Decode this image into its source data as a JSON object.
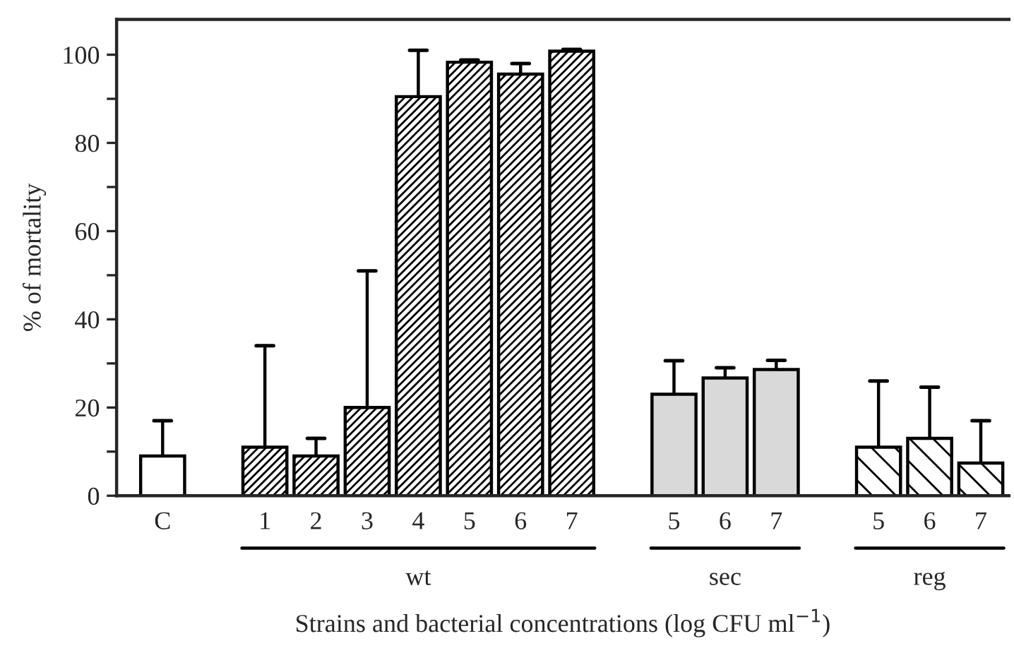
{
  "chart_data": {
    "type": "bar",
    "ylabel": "% of mortality",
    "xlabel": "Strains and bacterial concentrations (log CFU ml$^{−1}$)",
    "categories": [
      "C",
      null,
      "1",
      "2",
      "3",
      "4",
      "5",
      "6",
      "7",
      null,
      "5",
      "6",
      "7",
      null,
      "5",
      "6",
      "7"
    ],
    "series": [
      {
        "color": "#ffffff",
        "values": [
          9,
          null,
          null,
          null,
          null,
          null,
          null,
          null,
          null,
          null,
          null,
          null,
          null,
          null,
          null,
          null,
          null
        ],
        "errors": [
          [
            9,
            17
          ],
          null,
          null,
          null,
          null,
          null,
          null,
          null,
          null,
          null,
          null,
          null,
          null,
          null,
          null,
          null,
          null
        ]
      },
      {
        "color": "#000000",
        "values": [
          null,
          null,
          11,
          9,
          20,
          90.5,
          98.3,
          95.6,
          100.8,
          null,
          null,
          null,
          null,
          null,
          null,
          null,
          null
        ],
        "errors": [
          null,
          null,
          [
            11,
            34
          ],
          [
            9,
            13
          ],
          [
            20,
            51
          ],
          [
            90.5,
            101
          ],
          [
            98.3,
            98.8
          ],
          [
            95.6,
            98
          ],
          [
            100.8,
            101.2
          ],
          null,
          null,
          null,
          null,
          null,
          null,
          null,
          null
        ]
      },
      {
        "color": "#d9d9d9",
        "values": [
          null,
          null,
          null,
          null,
          null,
          null,
          null,
          null,
          null,
          null,
          23,
          26.7,
          28.6,
          null,
          null,
          null,
          null
        ],
        "errors": [
          null,
          null,
          null,
          null,
          null,
          null,
          null,
          null,
          null,
          null,
          [
            23,
            30.6
          ],
          [
            26.7,
            29
          ],
          [
            28.6,
            30.7
          ],
          null,
          null,
          null,
          null
        ]
      },
      {
        "color": "#000000",
        "values": [
          null,
          null,
          null,
          null,
          null,
          null,
          null,
          null,
          null,
          null,
          null,
          null,
          null,
          null,
          11,
          13,
          7.4
        ],
        "errors": [
          null,
          null,
          null,
          null,
          null,
          null,
          null,
          null,
          null,
          null,
          null,
          null,
          null,
          null,
          [
            11,
            26
          ],
          [
            13,
            24.6
          ],
          [
            7.4,
            17
          ]
        ]
      }
    ],
    "annotations": [
      "wt",
      "sec",
      "reg"
    ],
    "ylim": [
      0,
      108
    ],
    "yticks": [
      0,
      {
        "value": 10,
        "label": null
      },
      20,
      {
        "value": 30,
        "label": null
      },
      40,
      {
        "value": 50,
        "label": null
      },
      60,
      {
        "value": 70,
        "label": null
      },
      80,
      {
        "value": 90,
        "label": null
      },
      100
    ],
    "grid": false
  }
}
